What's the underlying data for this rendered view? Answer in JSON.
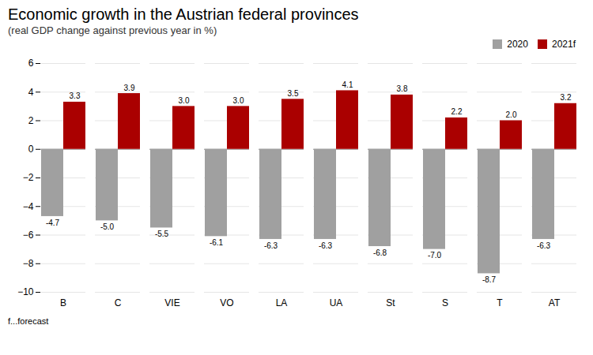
{
  "chart_data": {
    "type": "bar",
    "title": "Economic growth in the Austrian federal provinces",
    "subtitle": "(real GDP change against previous year in %)",
    "footnote": "f...forecast",
    "categories": [
      "B",
      "C",
      "VIE",
      "VO",
      "LA",
      "UA",
      "St",
      "S",
      "T",
      "AT"
    ],
    "series": [
      {
        "name": "2020",
        "color": "#a0a0a0",
        "values": [
          -4.7,
          -5.0,
          -5.5,
          -6.1,
          -6.3,
          -6.3,
          -6.8,
          -7.0,
          -8.7,
          -6.3
        ],
        "value_labels": [
          "-4.7",
          "-5.0",
          "-5.5",
          "-6.1",
          "-6.3",
          "-6.3",
          "-6.8",
          "-7.0",
          "-8.7",
          "-6.3"
        ]
      },
      {
        "name": "2021f",
        "color": "#aa0000",
        "values": [
          3.3,
          3.9,
          3.0,
          3.0,
          3.5,
          4.1,
          3.8,
          2.2,
          2.0,
          3.2
        ],
        "value_labels": [
          "3.3",
          "3.9",
          "3.0",
          "3.0",
          "3.5",
          "4.1",
          "3.8",
          "2.2",
          "2.0",
          "3.2"
        ]
      }
    ],
    "ylim": [
      -10,
      6
    ],
    "yticks": [
      -10,
      -8,
      -6,
      -4,
      -2,
      0,
      2,
      4,
      6
    ],
    "grid": true,
    "legend": "upper right",
    "data_labels": true
  }
}
